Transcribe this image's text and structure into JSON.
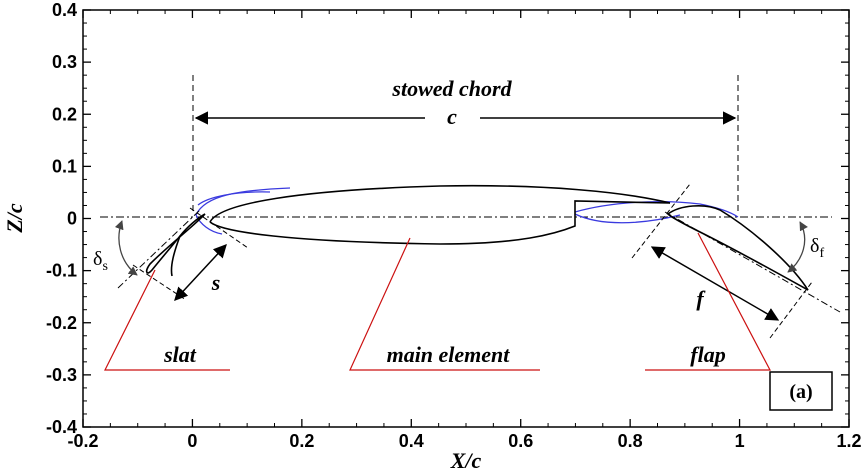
{
  "axes": {
    "xlabel": "X/c",
    "ylabel": "Z/c",
    "xlim": [
      -0.2,
      1.2
    ],
    "ylim": [
      -0.4,
      0.4
    ],
    "x_ticks": [
      "-0.2",
      "0",
      "0.2",
      "0.4",
      "0.6",
      "0.8",
      "1",
      "1.2"
    ],
    "y_ticks": [
      "0.4",
      "0.3",
      "0.2",
      "0.1",
      "0",
      "-0.1",
      "-0.2",
      "-0.3",
      "-0.4"
    ]
  },
  "annotations": {
    "stowed_chord": "stowed chord",
    "chord_symbol": "c",
    "slat": "slat",
    "main_element": "main element",
    "flap": "flap",
    "gap_s": "s",
    "gap_f": "f",
    "delta_s": "δ",
    "delta_s_sub": "s",
    "delta_f": "δ",
    "delta_f_sub": "f",
    "panel": "(a)"
  },
  "colors": {
    "deployed": "#000000",
    "stowed": "#3a3adf",
    "leader": "#cc1111"
  }
}
